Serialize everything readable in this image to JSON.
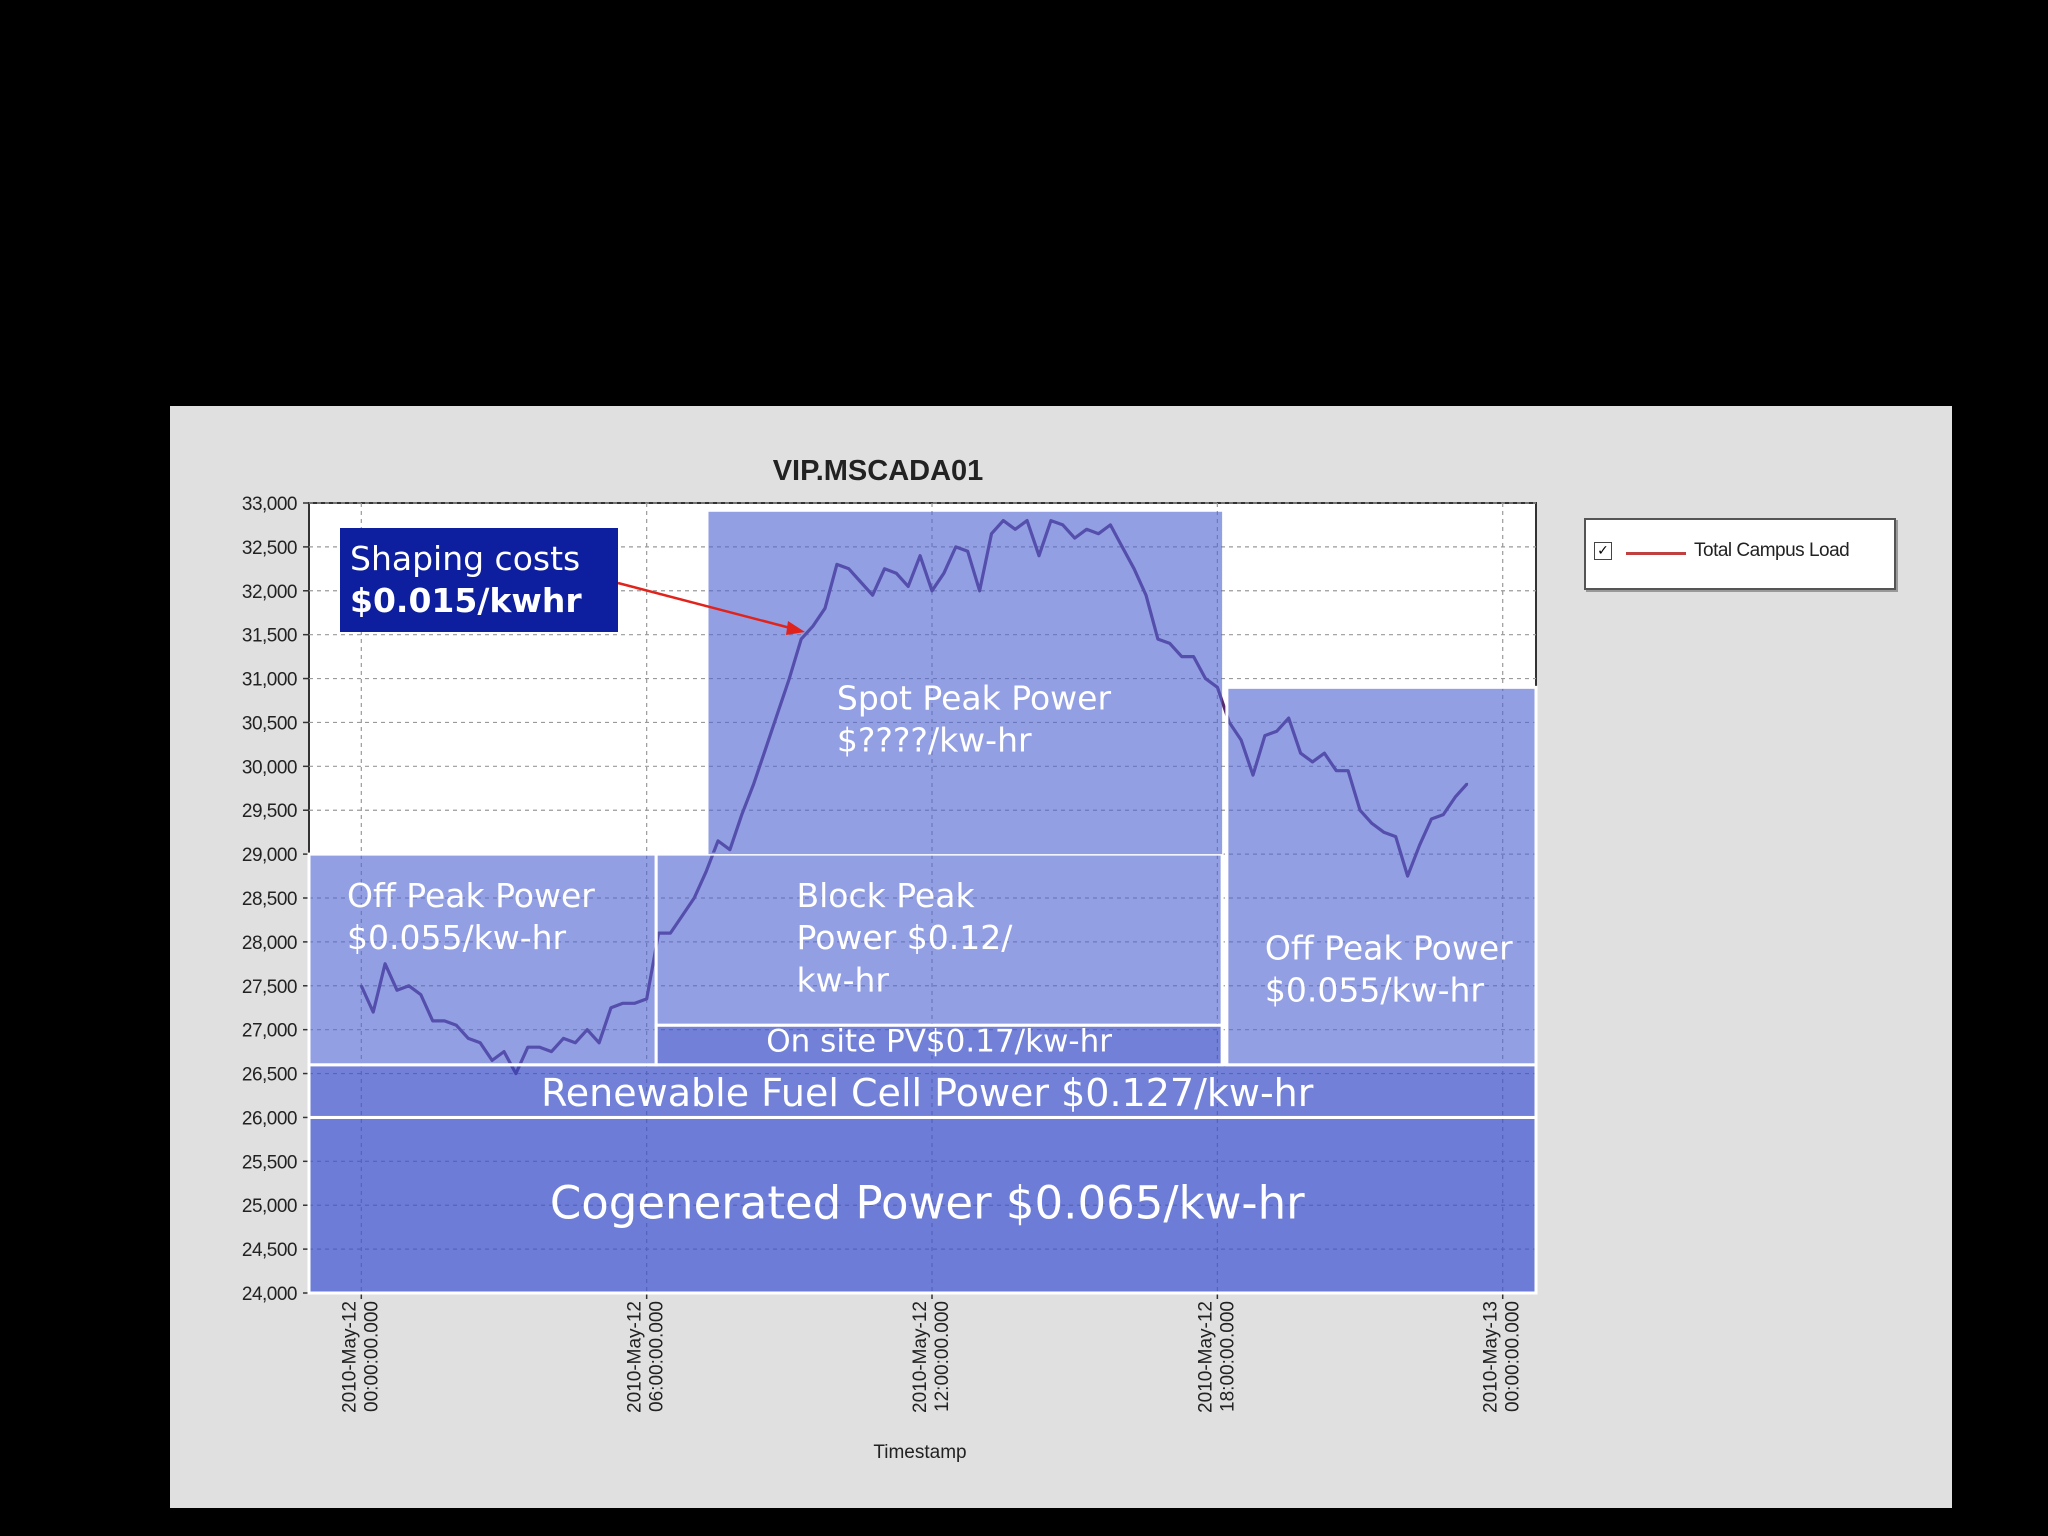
{
  "chart_data": {
    "type": "line",
    "title": "VIP.MSCADA01",
    "xlabel": "Timestamp",
    "ylabel": "",
    "ylim": [
      24000,
      33000
    ],
    "xlim": [
      -1.1,
      24.7
    ],
    "y_ticks": [
      "33,000",
      "32,500",
      "32,000",
      "31,500",
      "31,000",
      "30,500",
      "30,000",
      "29,500",
      "29,000",
      "28,500",
      "28,000",
      "27,500",
      "27,000",
      "26,500",
      "26,000",
      "25,500",
      "25,000",
      "24,500",
      "24,000"
    ],
    "x_ticks": [
      {
        "hour": 0,
        "date": "2010-May-12",
        "time": "00:00:00.000"
      },
      {
        "hour": 6,
        "date": "2010-May-12",
        "time": "06:00:00.000"
      },
      {
        "hour": 12,
        "date": "2010-May-12",
        "time": "12:00:00.000"
      },
      {
        "hour": 18,
        "date": "2010-May-12",
        "time": "18:00:00.000"
      },
      {
        "hour": 24,
        "date": "2010-May-13",
        "time": "00:00:00.000"
      }
    ],
    "series": [
      {
        "name": "Total Campus Load",
        "color": "#5a2a6e",
        "points": [
          [
            0.0,
            27500
          ],
          [
            0.25,
            27200
          ],
          [
            0.5,
            27750
          ],
          [
            0.75,
            27450
          ],
          [
            1.0,
            27500
          ],
          [
            1.25,
            27400
          ],
          [
            1.5,
            27100
          ],
          [
            1.75,
            27100
          ],
          [
            2.0,
            27050
          ],
          [
            2.25,
            26900
          ],
          [
            2.5,
            26850
          ],
          [
            2.75,
            26650
          ],
          [
            3.0,
            26750
          ],
          [
            3.25,
            26500
          ],
          [
            3.5,
            26800
          ],
          [
            3.75,
            26800
          ],
          [
            4.0,
            26750
          ],
          [
            4.25,
            26900
          ],
          [
            4.5,
            26850
          ],
          [
            4.75,
            27000
          ],
          [
            5.0,
            26850
          ],
          [
            5.25,
            27250
          ],
          [
            5.5,
            27300
          ],
          [
            5.75,
            27300
          ],
          [
            6.0,
            27350
          ],
          [
            6.25,
            28100
          ],
          [
            6.5,
            28100
          ],
          [
            6.75,
            28300
          ],
          [
            7.0,
            28500
          ],
          [
            7.25,
            28800
          ],
          [
            7.5,
            29150
          ],
          [
            7.75,
            29050
          ],
          [
            8.0,
            29450
          ],
          [
            8.25,
            29800
          ],
          [
            8.5,
            30200
          ],
          [
            8.75,
            30600
          ],
          [
            9.0,
            31000
          ],
          [
            9.25,
            31450
          ],
          [
            9.5,
            31600
          ],
          [
            9.75,
            31800
          ],
          [
            10.0,
            32300
          ],
          [
            10.25,
            32250
          ],
          [
            10.5,
            32100
          ],
          [
            10.75,
            31950
          ],
          [
            11.0,
            32250
          ],
          [
            11.25,
            32200
          ],
          [
            11.5,
            32050
          ],
          [
            11.75,
            32400
          ],
          [
            12.0,
            32000
          ],
          [
            12.25,
            32200
          ],
          [
            12.5,
            32500
          ],
          [
            12.75,
            32450
          ],
          [
            13.0,
            32000
          ],
          [
            13.25,
            32650
          ],
          [
            13.5,
            32800
          ],
          [
            13.75,
            32700
          ],
          [
            14.0,
            32800
          ],
          [
            14.25,
            32400
          ],
          [
            14.5,
            32800
          ],
          [
            14.75,
            32750
          ],
          [
            15.0,
            32600
          ],
          [
            15.25,
            32700
          ],
          [
            15.5,
            32650
          ],
          [
            15.75,
            32750
          ],
          [
            16.0,
            32500
          ],
          [
            16.25,
            32250
          ],
          [
            16.5,
            31950
          ],
          [
            16.75,
            31450
          ],
          [
            17.0,
            31400
          ],
          [
            17.25,
            31250
          ],
          [
            17.5,
            31250
          ],
          [
            17.75,
            31000
          ],
          [
            18.0,
            30900
          ],
          [
            18.25,
            30500
          ],
          [
            18.5,
            30300
          ],
          [
            18.75,
            29900
          ],
          [
            19.0,
            30350
          ],
          [
            19.25,
            30400
          ],
          [
            19.5,
            30550
          ],
          [
            19.75,
            30150
          ],
          [
            20.0,
            30050
          ],
          [
            20.25,
            30150
          ],
          [
            20.5,
            29950
          ],
          [
            20.75,
            29950
          ],
          [
            21.0,
            29500
          ],
          [
            21.25,
            29350
          ],
          [
            21.5,
            29250
          ],
          [
            21.75,
            29200
          ],
          [
            22.0,
            28750
          ],
          [
            22.25,
            29100
          ],
          [
            22.5,
            29400
          ],
          [
            22.75,
            29450
          ],
          [
            23.0,
            29650
          ],
          [
            23.25,
            29800
          ]
        ]
      }
    ],
    "legend_position": "top-right",
    "grid": true,
    "annotations": {
      "shaping": {
        "line1": "Shaping costs",
        "line2": "$0.015/kwhr"
      },
      "spot_peak": {
        "line1": "Spot Peak Power",
        "line2": "$????/kw-hr"
      },
      "off_peak_left": {
        "line1": "Off Peak Power",
        "line2": "$0.055/kw-hr"
      },
      "block_peak": {
        "line1": "Block Peak",
        "line2": "Power $0.12/",
        "line3": "kw-hr"
      },
      "off_peak_right": {
        "line1": "Off Peak Power",
        "line2": "$0.055/kw-hr"
      },
      "onsite_pv": "On site PV$0.17/kw-hr",
      "fuel_cell": "Renewable Fuel Cell Power $0.127/kw-hr",
      "cogen": "Cogenerated Power $0.065/kw-hr"
    }
  },
  "legend": {
    "label": "Total Campus Load",
    "checked": "✓"
  }
}
